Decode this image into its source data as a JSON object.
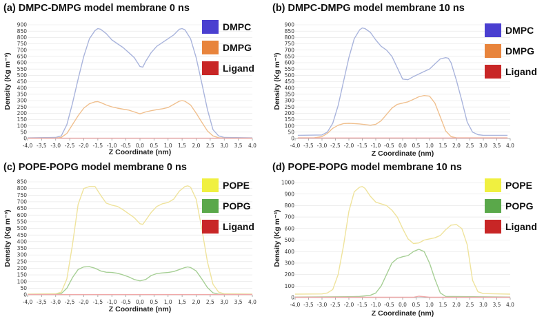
{
  "chart_data": [
    {
      "type": "line",
      "title": "(a) DMPC-DMPG model membrane 0 ns",
      "xlabel": "Z Coordinate (nm)",
      "ylabel": "Density (Kg m⁻³)",
      "xlim": [
        -4.0,
        4.0
      ],
      "ylim": [
        0,
        900
      ],
      "xticks": [
        -4.0,
        -3.5,
        -3.0,
        -2.5,
        -2.0,
        -1.5,
        -1.0,
        -0.5,
        0.0,
        0.5,
        1.0,
        1.5,
        2.0,
        2.5,
        3.0,
        3.5,
        4.0
      ],
      "xtick_labels": [
        "-4,0",
        "-3,5",
        "-3,0",
        "-2,5",
        "-2,0",
        "-1,5",
        "-1,0",
        "-0,5",
        "0,0",
        "0,5",
        "1,0",
        "1,5",
        "2,0",
        "2,5",
        "3,0",
        "3,5",
        "4,0"
      ],
      "yticks": [
        0,
        50,
        100,
        150,
        200,
        250,
        300,
        350,
        400,
        450,
        500,
        550,
        600,
        650,
        700,
        750,
        800,
        850,
        900
      ],
      "legend_position": "right",
      "series": [
        {
          "name": "DMPC",
          "color": "#4a3fd0",
          "line_color": "#a9b4dc",
          "x": [
            -4.0,
            -3.0,
            -2.8,
            -2.6,
            -2.4,
            -2.2,
            -2.0,
            -1.8,
            -1.6,
            -1.5,
            -1.4,
            -1.2,
            -1.0,
            -0.8,
            -0.6,
            -0.4,
            -0.2,
            0.0,
            0.1,
            0.2,
            0.4,
            0.6,
            0.8,
            1.0,
            1.2,
            1.4,
            1.5,
            1.6,
            1.8,
            2.0,
            2.2,
            2.4,
            2.6,
            2.8,
            3.0,
            4.0
          ],
          "y": [
            5,
            8,
            20,
            110,
            280,
            470,
            650,
            790,
            855,
            870,
            865,
            830,
            780,
            750,
            720,
            680,
            640,
            570,
            565,
            610,
            680,
            730,
            760,
            790,
            820,
            865,
            870,
            860,
            790,
            640,
            440,
            230,
            70,
            20,
            8,
            5
          ]
        },
        {
          "name": "DMPG",
          "color": "#e8843c",
          "line_color": "#f0c08f",
          "x": [
            -4.0,
            -3.0,
            -2.8,
            -2.6,
            -2.4,
            -2.2,
            -2.0,
            -1.8,
            -1.6,
            -1.5,
            -1.4,
            -1.2,
            -1.0,
            -0.8,
            -0.6,
            -0.4,
            -0.2,
            0.0,
            0.2,
            0.4,
            0.6,
            0.8,
            1.0,
            1.2,
            1.4,
            1.5,
            1.6,
            1.8,
            2.0,
            2.2,
            2.4,
            2.6,
            2.8,
            3.0,
            4.0
          ],
          "y": [
            2,
            3,
            8,
            40,
            110,
            180,
            240,
            275,
            290,
            292,
            285,
            265,
            250,
            240,
            232,
            225,
            210,
            195,
            210,
            220,
            228,
            235,
            245,
            270,
            295,
            300,
            295,
            265,
            200,
            130,
            60,
            20,
            6,
            3,
            2
          ]
        },
        {
          "name": "Ligand",
          "color": "#c82626",
          "line_color": "#f0a8a8",
          "x": [
            -4.0,
            4.0
          ],
          "y": [
            2,
            2
          ]
        }
      ]
    },
    {
      "type": "line",
      "title": "(b) DMPC-DMPG model membrane 10 ns",
      "xlabel": "Z Coordinate (nm)",
      "ylabel": "Density (Kg m⁻³)",
      "xlim": [
        -4.0,
        4.0
      ],
      "ylim": [
        0,
        900
      ],
      "xticks": [
        -4.0,
        -3.5,
        -3.0,
        -2.5,
        -2.0,
        -1.5,
        -1.0,
        -0.5,
        0.0,
        0.5,
        1.0,
        1.5,
        2.0,
        2.5,
        3.0,
        3.5,
        4.0
      ],
      "xtick_labels": [
        "-4,0",
        "-3,5",
        "-3,0",
        "-2,5",
        "-2,0",
        "-1,5",
        "-1,0",
        "-0,5",
        "0,0",
        "0,5",
        "1,0",
        "1,5",
        "2,0",
        "2,5",
        "3,0",
        "3,5",
        "4,0"
      ],
      "yticks": [
        0,
        50,
        100,
        150,
        200,
        250,
        300,
        350,
        400,
        450,
        500,
        550,
        600,
        650,
        700,
        750,
        800,
        850,
        900
      ],
      "legend_position": "right",
      "series": [
        {
          "name": "DMPC",
          "color": "#4a3fd0",
          "line_color": "#a9b4dc",
          "x": [
            -3.9,
            -3.0,
            -2.8,
            -2.6,
            -2.4,
            -2.2,
            -2.0,
            -1.8,
            -1.6,
            -1.5,
            -1.4,
            -1.2,
            -1.0,
            -0.8,
            -0.6,
            -0.4,
            -0.2,
            0.0,
            0.2,
            0.4,
            0.6,
            0.8,
            1.0,
            1.2,
            1.4,
            1.6,
            1.7,
            1.8,
            2.0,
            2.2,
            2.4,
            2.6,
            2.8,
            3.0,
            3.9
          ],
          "y": [
            25,
            28,
            50,
            120,
            260,
            450,
            640,
            790,
            860,
            875,
            870,
            840,
            780,
            730,
            700,
            650,
            560,
            470,
            465,
            490,
            510,
            530,
            550,
            590,
            630,
            640,
            635,
            600,
            460,
            300,
            130,
            50,
            30,
            25,
            25
          ]
        },
        {
          "name": "DMPG",
          "color": "#e8843c",
          "line_color": "#f0c08f",
          "x": [
            -3.9,
            -3.3,
            -3.0,
            -2.8,
            -2.6,
            -2.4,
            -2.2,
            -2.0,
            -1.8,
            -1.6,
            -1.4,
            -1.2,
            -1.0,
            -0.8,
            -0.6,
            -0.4,
            -0.2,
            0.0,
            0.2,
            0.4,
            0.6,
            0.8,
            1.0,
            1.2,
            1.4,
            1.6,
            1.8,
            2.0,
            3.9
          ],
          "y": [
            5,
            5,
            15,
            40,
            80,
            105,
            118,
            120,
            118,
            115,
            110,
            105,
            112,
            140,
            190,
            240,
            270,
            280,
            290,
            310,
            330,
            340,
            335,
            280,
            170,
            60,
            15,
            5,
            5
          ]
        },
        {
          "name": "Ligand",
          "color": "#c82626",
          "line_color": "#f0a8a8",
          "x": [
            -3.9,
            3.9
          ],
          "y": [
            4,
            4
          ]
        }
      ]
    },
    {
      "type": "line",
      "title": "(c) POPE-POPG model membrane 0 ns",
      "xlabel": "Z Coordinate (nm)",
      "ylabel": "Density (Kg m⁻³)",
      "xlim": [
        -4.0,
        4.0
      ],
      "ylim": [
        0,
        850
      ],
      "xticks": [
        -4.0,
        -3.5,
        -3.0,
        -2.5,
        -2.0,
        -1.5,
        -1.0,
        -0.5,
        0.0,
        0.5,
        1.0,
        1.5,
        2.0,
        2.5,
        3.0,
        3.5,
        4.0
      ],
      "xtick_labels": [
        "-4,0",
        "-3,5",
        "-3,0",
        "-2,5",
        "-2,0",
        "-1,5",
        "-1,0",
        "-0,5",
        "0,0",
        "0,5",
        "1,0",
        "1,5",
        "2,0",
        "2,5",
        "3,0",
        "3,5",
        "4,0"
      ],
      "yticks": [
        0,
        50,
        100,
        150,
        200,
        250,
        300,
        350,
        400,
        450,
        500,
        550,
        600,
        650,
        700,
        750,
        800,
        850
      ],
      "legend_position": "right",
      "series": [
        {
          "name": "POPE",
          "color": "#f0f040",
          "line_color": "#efe39c",
          "x": [
            -4.0,
            -3.0,
            -2.8,
            -2.6,
            -2.4,
            -2.2,
            -2.0,
            -1.8,
            -1.6,
            -1.4,
            -1.2,
            -1.0,
            -0.8,
            -0.6,
            -0.4,
            -0.2,
            0.0,
            0.1,
            0.2,
            0.4,
            0.6,
            0.8,
            1.0,
            1.2,
            1.4,
            1.6,
            1.7,
            1.8,
            2.0,
            2.2,
            2.4,
            2.6,
            2.8,
            3.0,
            4.0
          ],
          "y": [
            5,
            8,
            20,
            120,
            380,
            680,
            800,
            815,
            815,
            750,
            690,
            675,
            665,
            640,
            610,
            580,
            535,
            530,
            560,
            620,
            665,
            685,
            695,
            720,
            780,
            815,
            820,
            810,
            720,
            500,
            250,
            80,
            20,
            8,
            5
          ]
        },
        {
          "name": "POPG",
          "color": "#5aa84a",
          "line_color": "#a6cf95",
          "x": [
            -4.0,
            -3.0,
            -2.8,
            -2.6,
            -2.4,
            -2.2,
            -2.0,
            -1.8,
            -1.6,
            -1.4,
            -1.2,
            -1.0,
            -0.8,
            -0.6,
            -0.4,
            -0.2,
            0.0,
            0.2,
            0.4,
            0.6,
            0.8,
            1.0,
            1.2,
            1.4,
            1.6,
            1.7,
            1.8,
            2.0,
            2.2,
            2.4,
            2.6,
            2.8,
            3.0,
            4.0
          ],
          "y": [
            2,
            3,
            10,
            50,
            130,
            190,
            210,
            212,
            200,
            180,
            170,
            168,
            162,
            150,
            135,
            115,
            105,
            115,
            145,
            160,
            165,
            168,
            175,
            190,
            205,
            210,
            205,
            180,
            120,
            55,
            15,
            5,
            3,
            2
          ]
        },
        {
          "name": "Ligand",
          "color": "#c82626",
          "line_color": "#f0a8a8",
          "x": [
            -4.0,
            4.0
          ],
          "y": [
            2,
            2
          ]
        }
      ]
    },
    {
      "type": "line",
      "title": "(d) POPE-POPG model membrane 10 ns",
      "xlabel": "Z Coordinate (nm)",
      "ylabel": "Density (Kg m⁻³)",
      "xlim": [
        -4.0,
        4.0
      ],
      "ylim": [
        0,
        1000
      ],
      "xticks": [
        -4.0,
        -3.5,
        -3.0,
        -2.5,
        -2.0,
        -1.5,
        -1.0,
        -0.5,
        0.0,
        0.5,
        1.0,
        1.5,
        2.0,
        2.5,
        3.0,
        3.5,
        4.0
      ],
      "xtick_labels": [
        "-4,0",
        "-3,5",
        "-3,0",
        "-2,5",
        "-2,0",
        "-1,5",
        "-1,0",
        "-0,5",
        "0,0",
        "0,5",
        "1,0",
        "1,5",
        "2,0",
        "2,5",
        "3,0",
        "3,5",
        "4,0"
      ],
      "yticks": [
        0,
        100,
        200,
        300,
        400,
        500,
        600,
        700,
        800,
        900,
        1000
      ],
      "legend_position": "right",
      "series": [
        {
          "name": "POPE",
          "color": "#f0f040",
          "line_color": "#efe39c",
          "x": [
            -4.0,
            -3.0,
            -2.8,
            -2.6,
            -2.4,
            -2.2,
            -2.0,
            -1.8,
            -1.6,
            -1.5,
            -1.4,
            -1.2,
            -1.0,
            -0.8,
            -0.6,
            -0.4,
            -0.2,
            0.0,
            0.2,
            0.4,
            0.6,
            0.8,
            1.0,
            1.2,
            1.4,
            1.6,
            1.8,
            2.0,
            2.2,
            2.4,
            2.6,
            2.8,
            3.0,
            4.0
          ],
          "y": [
            30,
            32,
            40,
            70,
            200,
            450,
            750,
            920,
            960,
            965,
            950,
            880,
            830,
            815,
            800,
            760,
            700,
            600,
            510,
            470,
            475,
            500,
            510,
            520,
            540,
            590,
            630,
            635,
            600,
            460,
            150,
            50,
            35,
            30
          ]
        },
        {
          "name": "POPG",
          "color": "#5aa84a",
          "line_color": "#a6cf95",
          "x": [
            -4.0,
            -2.0,
            -1.6,
            -1.4,
            -1.2,
            -1.0,
            -0.8,
            -0.6,
            -0.4,
            -0.2,
            0.0,
            0.2,
            0.4,
            0.6,
            0.8,
            1.0,
            1.2,
            1.4,
            1.6,
            4.0
          ],
          "y": [
            5,
            8,
            10,
            15,
            20,
            40,
            100,
            200,
            300,
            340,
            355,
            365,
            400,
            420,
            400,
            300,
            160,
            40,
            10,
            5
          ]
        },
        {
          "name": "Ligand",
          "color": "#c82626",
          "line_color": "#f0a8a8",
          "x": [
            -4.0,
            0.4,
            0.6,
            0.8,
            1.0,
            4.0
          ],
          "y": [
            3,
            3,
            12,
            8,
            3,
            3
          ]
        }
      ]
    }
  ]
}
